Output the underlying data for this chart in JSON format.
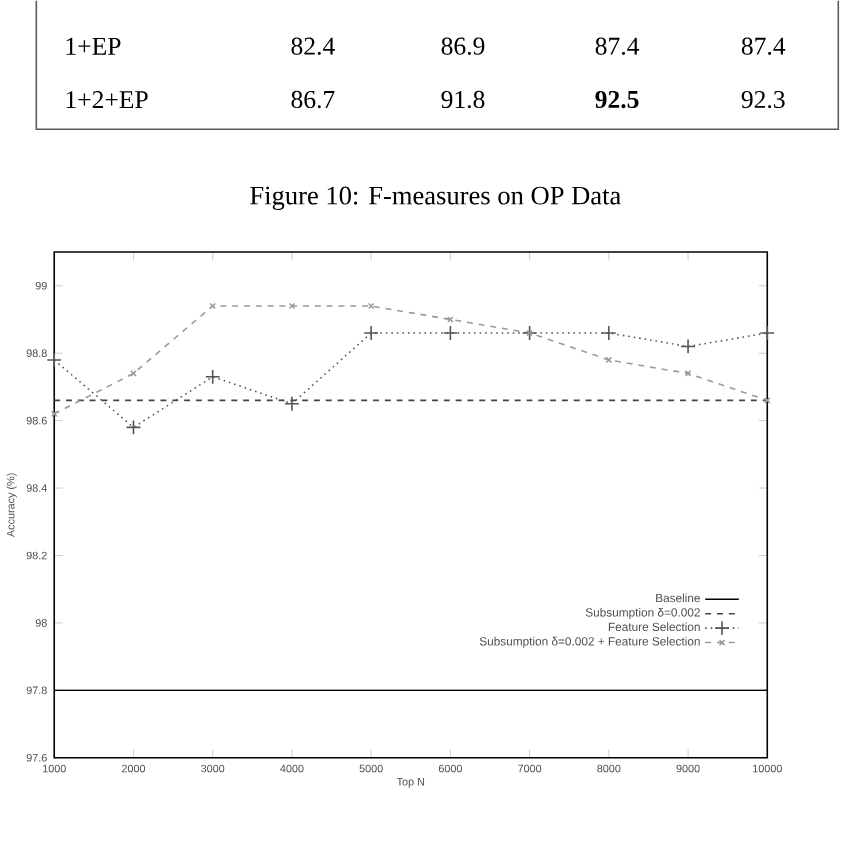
{
  "chart_data": {
    "type": "line",
    "xlabel": "Top N",
    "ylabel": "Accuracy (%)",
    "x": [
      1000,
      2000,
      3000,
      4000,
      5000,
      6000,
      7000,
      8000,
      9000,
      10000
    ],
    "series": [
      {
        "name": "Baseline",
        "color": "#000000",
        "line_style": "solid",
        "marker": "none",
        "values": [
          97.8,
          97.8,
          97.8,
          97.8,
          97.8,
          97.8,
          97.8,
          97.8,
          97.8,
          97.8
        ]
      },
      {
        "name": "Subsumption δ=0.002",
        "color": "#444444",
        "line_style": "dashed",
        "marker": "none",
        "values": [
          98.66,
          98.66,
          98.66,
          98.66,
          98.66,
          98.66,
          98.66,
          98.66,
          98.66,
          98.66
        ]
      },
      {
        "name": "Feature Selection",
        "color": "#555555",
        "line_style": "dotted",
        "marker": "plus",
        "values": [
          98.78,
          98.58,
          98.73,
          98.65,
          98.86,
          98.86,
          98.86,
          98.86,
          98.82,
          98.86
        ]
      },
      {
        "name": "Subsumption δ=0.002 + Feature Selection",
        "color": "#999999",
        "line_style": "dashed",
        "marker": "cross",
        "values": [
          98.62,
          98.74,
          98.94,
          98.94,
          98.94,
          98.9,
          98.86,
          98.78,
          98.74,
          98.66
        ]
      }
    ],
    "xlim": [
      1000,
      10000
    ],
    "xticks": [
      1000,
      2000,
      3000,
      4000,
      5000,
      6000,
      7000,
      8000,
      9000,
      10000
    ],
    "ylim": [
      97.6,
      99.1
    ],
    "yticks": [
      97.6,
      97.8,
      98,
      98.2,
      98.4,
      98.6,
      98.8,
      99
    ],
    "legend": "bottom right",
    "grid": false,
    "annotations": [
      "1+EP",
      "82.4",
      "86.9",
      "87.4",
      "87.4",
      "1+2+EP",
      "86.7",
      "91.8",
      "**92.5**",
      "92.3",
      "Figure 10: F-measures on OP Data"
    ]
  }
}
